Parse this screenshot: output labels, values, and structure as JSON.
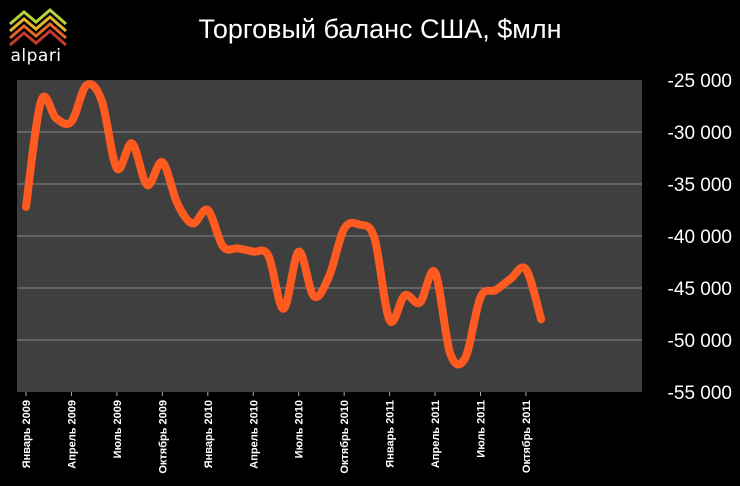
{
  "brand": {
    "name": "alpari",
    "logo_colors": [
      "#b6d33b",
      "#e6b32c",
      "#e2672a",
      "#c23b2b"
    ]
  },
  "chart_data": {
    "type": "line",
    "title": "Торговый баланс США, $млн",
    "xlabel": "",
    "ylabel": "",
    "ylim": [
      -55000,
      -25000
    ],
    "yticks": [
      -25000,
      -30000,
      -35000,
      -40000,
      -45000,
      -50000,
      -55000
    ],
    "ytick_labels": [
      "-25 000",
      "-30 000",
      "-35 000",
      "-40 000",
      "-45 000",
      "-50 000",
      "-55 000"
    ],
    "xtick_labels": [
      "Январь 2009",
      "Апрель 2009",
      "Июль 2009",
      "Октябрь 2009",
      "Январь 2010",
      "Апрель 2010",
      "Июль 2010",
      "Октябрь 2010",
      "Январь 2011",
      "Апрель 2011",
      "Июль 2011",
      "Октябрь 2011"
    ],
    "xtick_months": [
      0,
      3,
      6,
      9,
      12,
      15,
      18,
      21,
      24,
      27,
      30,
      33
    ],
    "grid": true,
    "plot_background": "#3f3f3f",
    "line_color": "#ff5a1f",
    "series": [
      {
        "x": [
          "Январь 2009",
          "Февраль 2009",
          "Март 2009",
          "Апрель 2009",
          "Май 2009",
          "Июнь 2009",
          "Июль 2009",
          "Август 2009",
          "Сентябрь 2009",
          "Октябрь 2009",
          "Ноябрь 2009",
          "Декабрь 2009",
          "Январь 2010",
          "Февраль 2010",
          "Март 2010",
          "Апрель 2010",
          "Май 2010",
          "Июнь 2010",
          "Июль 2010",
          "Август 2010",
          "Сентябрь 2010",
          "Октябрь 2010",
          "Ноябрь 2010",
          "Декабрь 2010",
          "Январь 2011",
          "Февраль 2011",
          "Март 2011",
          "Апрель 2011",
          "Май 2011",
          "Июнь 2011",
          "Июль 2011",
          "Август 2011",
          "Сентябрь 2011",
          "Октябрь 2011",
          "Ноябрь 2011"
        ],
        "values": [
          -37200,
          -27000,
          -28700,
          -29000,
          -25500,
          -27000,
          -33500,
          -31100,
          -35100,
          -32900,
          -36900,
          -38800,
          -37500,
          -41000,
          -41200,
          -41500,
          -41900,
          -47000,
          -41500,
          -45800,
          -43900,
          -39300,
          -38900,
          -40200,
          -48100,
          -45700,
          -46400,
          -43500,
          -51300,
          -51700,
          -45900,
          -45200,
          -44100,
          -43200,
          -48000
        ]
      }
    ]
  }
}
